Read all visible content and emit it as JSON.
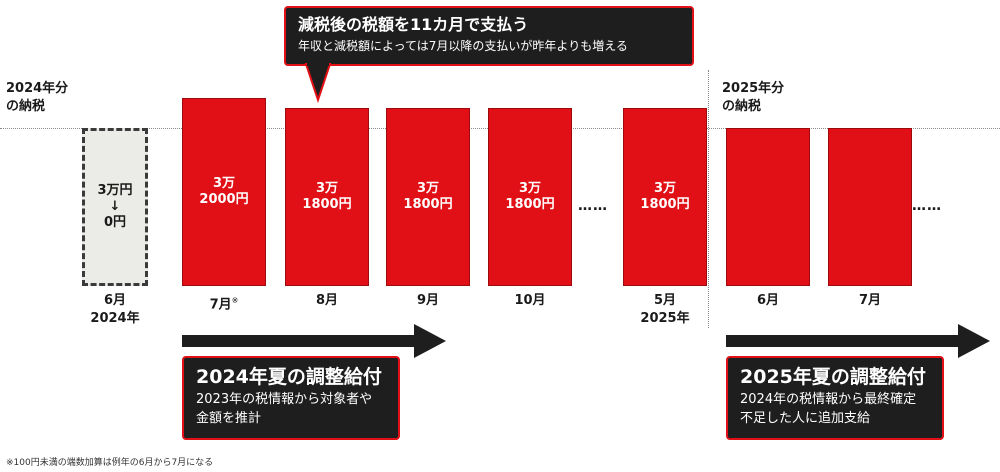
{
  "label_2024": "2024年分\nの納税",
  "label_2025": "2025年分\nの納税",
  "callout": {
    "title": "減税後の税額を11カ月で支払う",
    "subtitle": "年収と減税額によっては7月以降の支払いが昨年よりも増える"
  },
  "bars": [
    {
      "text": "3万円\n↓\n0円",
      "month": "6月\n2024年"
    },
    {
      "text": "3万\n2000円",
      "month": "7月",
      "footnote_mark": "※"
    },
    {
      "text": "3万\n1800円",
      "month": "8月"
    },
    {
      "text": "3万\n1800円",
      "month": "9月"
    },
    {
      "text": "3万\n1800円",
      "month": "10月"
    },
    {
      "text": "3万\n1800円",
      "month": "5月\n2025年"
    },
    {
      "text": "",
      "month": "6月"
    },
    {
      "text": "",
      "month": "7月"
    }
  ],
  "ellipsis": "……",
  "box_2024": {
    "title": "2024年夏の調整給付",
    "body": "2023年の税情報から対象者や\n金額を推計"
  },
  "box_2025": {
    "title": "2025年夏の調整給付",
    "body": "2024年の税情報から最終確定\n不足した人に追加支給"
  },
  "footnote": "※100円未満の端数加算は例年の6月から7月になる",
  "colors": {
    "red": "#e01016",
    "dark": "#1e1e1e",
    "gray_fill": "#ebebe7"
  }
}
